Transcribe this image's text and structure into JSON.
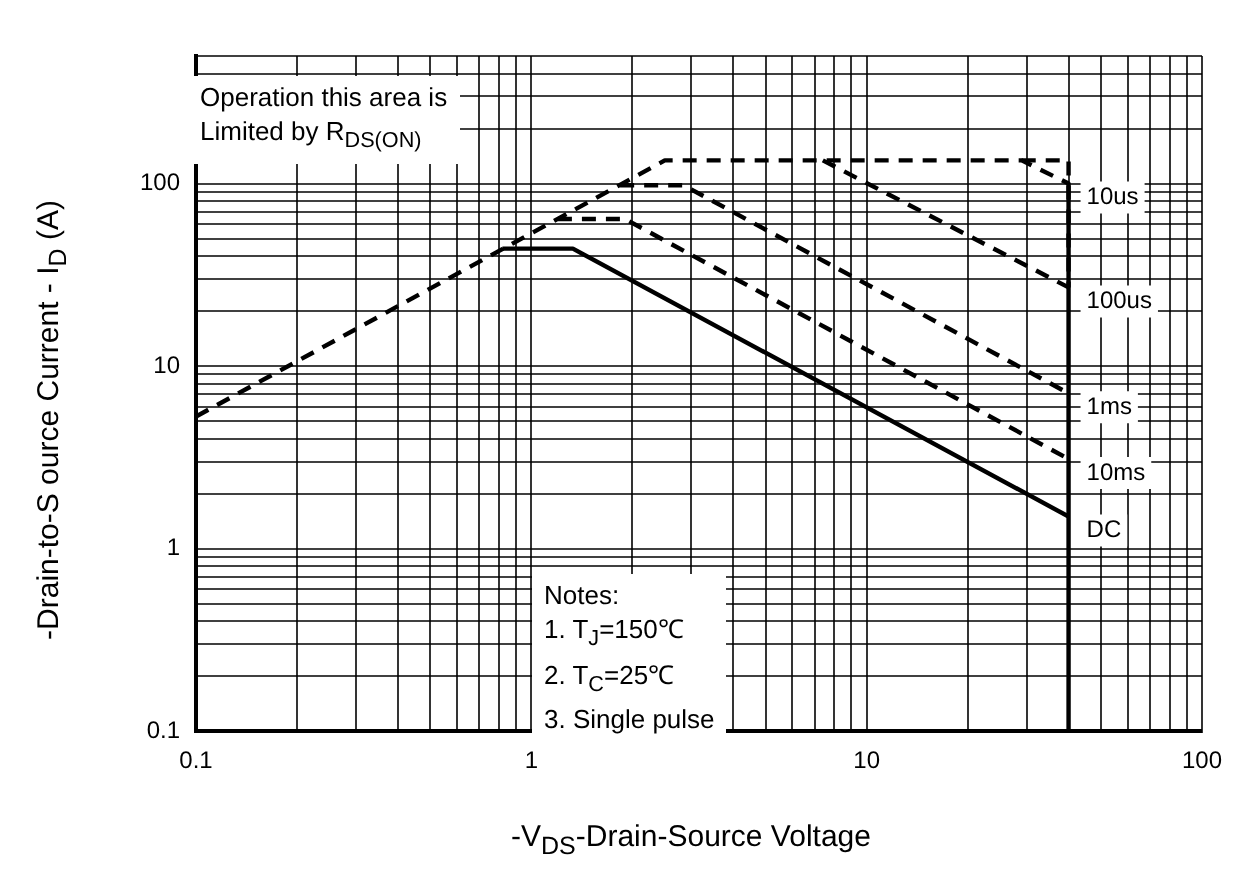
{
  "chart_data": {
    "type": "line",
    "xlabel": "-V$_{DS}$-Drain-Source Voltage",
    "ylabel": "-Drain-to-S ource Current - I$_{D}$ (A)",
    "log": "xy",
    "grid": true,
    "legend": false,
    "marker": "none",
    "xlim": [
      0.1,
      100
    ],
    "ylim": [
      0.1,
      500
    ],
    "xticks": [
      0.1,
      {
        "value": 0.2,
        "label": null
      },
      {
        "value": 0.3,
        "label": null
      },
      {
        "value": 0.4,
        "label": null
      },
      {
        "value": 0.5,
        "label": null
      },
      {
        "value": 0.6,
        "label": null
      },
      {
        "value": 0.7,
        "label": null
      },
      {
        "value": 0.8,
        "label": null
      },
      {
        "value": 0.9,
        "label": null
      },
      1,
      {
        "value": 2,
        "label": null
      },
      {
        "value": 3,
        "label": null
      },
      {
        "value": 4,
        "label": null
      },
      {
        "value": 5,
        "label": null
      },
      {
        "value": 6,
        "label": null
      },
      {
        "value": 7,
        "label": null
      },
      {
        "value": 8,
        "label": null
      },
      {
        "value": 9,
        "label": null
      },
      10,
      {
        "value": 20,
        "label": null
      },
      {
        "value": 30,
        "label": null
      },
      {
        "value": 40,
        "label": null
      },
      {
        "value": 50,
        "label": null
      },
      {
        "value": 60,
        "label": null
      },
      {
        "value": 70,
        "label": null
      },
      {
        "value": 80,
        "label": null
      },
      {
        "value": 90,
        "label": null
      },
      100
    ],
    "yticks": [
      0.1,
      {
        "value": 0.2,
        "label": null
      },
      {
        "value": 0.3,
        "label": null
      },
      {
        "value": 0.4,
        "label": null
      },
      {
        "value": 0.5,
        "label": null
      },
      {
        "value": 0.6,
        "label": null
      },
      {
        "value": 0.7,
        "label": null
      },
      {
        "value": 0.8,
        "label": null
      },
      {
        "value": 0.9,
        "label": null
      },
      1,
      {
        "value": 2,
        "label": null
      },
      {
        "value": 3,
        "label": null
      },
      {
        "value": 4,
        "label": null
      },
      {
        "value": 5,
        "label": null
      },
      {
        "value": 6,
        "label": null
      },
      {
        "value": 7,
        "label": null
      },
      {
        "value": 8,
        "label": null
      },
      {
        "value": 9,
        "label": null
      },
      10,
      {
        "value": 20,
        "label": null
      },
      {
        "value": 30,
        "label": null
      },
      {
        "value": 40,
        "label": null
      },
      {
        "value": 50,
        "label": null
      },
      {
        "value": 60,
        "label": null
      },
      {
        "value": 70,
        "label": null
      },
      {
        "value": 80,
        "label": null
      },
      {
        "value": 90,
        "label": null
      },
      100,
      {
        "value": 200,
        "label": null
      },
      {
        "value": 300,
        "label": null
      },
      {
        "value": 400,
        "label": null
      },
      {
        "value": 500,
        "label": null
      }
    ],
    "series": [
      {
        "name": "10us",
        "color": "#000000",
        "line_style": "dashed",
        "x": [
          0.1,
          2.5,
          29,
          40
        ],
        "values": [
          5.3,
          134,
          134,
          100
        ]
      },
      {
        "color": "#000000",
        "line_style": "dashed",
        "x": [
          29,
          40,
          40
        ],
        "values": [
          134,
          134,
          27
        ]
      },
      {
        "name": "100us",
        "color": "#000000",
        "line_style": "dashed",
        "x": [
          7.4,
          40
        ],
        "values": [
          134,
          27
        ]
      },
      {
        "name": "1ms",
        "color": "#000000",
        "line_style": "dashed",
        "x": [
          1.84,
          2.84,
          40
        ],
        "values": [
          98,
          98,
          7.1
        ]
      },
      {
        "name": "10ms",
        "color": "#000000",
        "line_style": "dashed",
        "x": [
          1.2,
          1.9,
          40
        ],
        "values": [
          64,
          64,
          3.1
        ]
      },
      {
        "name": "DC",
        "color": "#000000",
        "line_style": "solid",
        "x": [
          0.82,
          1.33,
          40
        ],
        "values": [
          44,
          44,
          1.5
        ]
      },
      {
        "color": "#000000",
        "line_style": "solid",
        "x": [
          40,
          40
        ],
        "values": [
          100,
          0.1
        ]
      }
    ],
    "annotations": [
      "Operation this area is\nLimited  by R$_{DS(ON)}$",
      "Notes:\n1. T$_{J}$=150℃\n2. T$_{C}$=25℃\n3. Single pulse"
    ]
  }
}
